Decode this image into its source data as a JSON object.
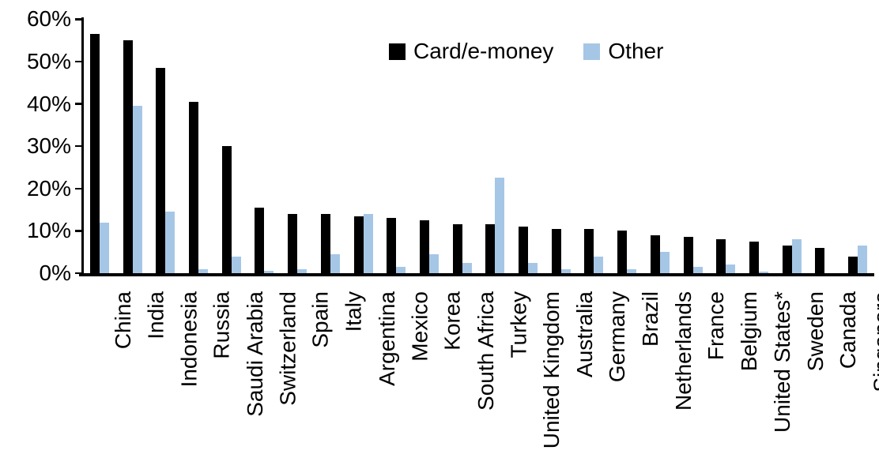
{
  "chart_data": {
    "type": "bar",
    "title": "",
    "xlabel": "",
    "ylabel": "",
    "ylim": [
      0,
      60
    ],
    "ytick_step": 10,
    "ytick_labels": [
      "0%",
      "10%",
      "20%",
      "30%",
      "40%",
      "50%",
      "60%"
    ],
    "grid": false,
    "legend_position": "top-center",
    "categories": [
      "China",
      "India",
      "Indonesia",
      "Russia",
      "Saudi Arabia",
      "Switzerland",
      "Spain",
      "Italy",
      "Argentina",
      "Mexico",
      "Korea",
      "South Africa",
      "Turkey",
      "United Kingdom",
      "Australia",
      "Germany",
      "Brazil",
      "Netherlands",
      "France",
      "Belgium",
      "United States*",
      "Sweden",
      "Canada",
      "Singapore"
    ],
    "series": [
      {
        "name": "Card/e-money",
        "color": "#000000",
        "values": [
          56.5,
          55,
          48.5,
          40.5,
          30,
          15.5,
          14,
          14,
          13.5,
          13,
          12.5,
          11.5,
          11.5,
          11,
          10.5,
          10.5,
          10,
          9,
          8.5,
          8,
          7.5,
          6.5,
          6,
          4
        ]
      },
      {
        "name": "Other",
        "color": "#A6C6E6",
        "values": [
          12,
          39.5,
          14.5,
          1,
          4,
          0.5,
          1,
          4.5,
          14,
          1.5,
          4.5,
          2.5,
          22.5,
          2.5,
          1,
          4,
          1,
          5,
          1.5,
          2,
          0.3,
          8,
          0,
          6.5
        ]
      }
    ]
  }
}
